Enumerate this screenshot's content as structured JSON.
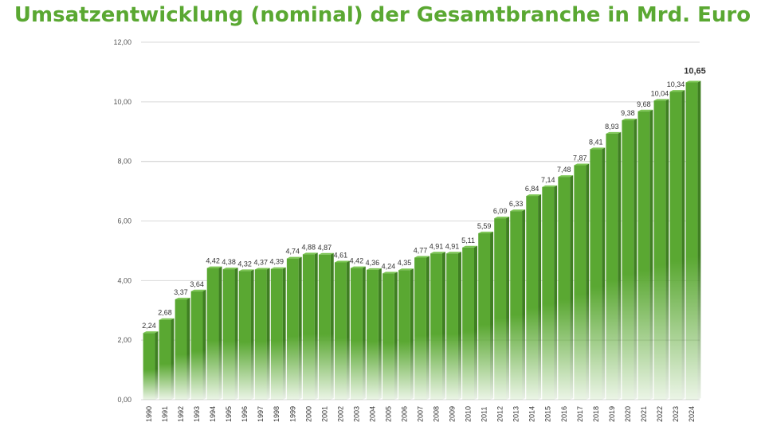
{
  "chart_data": {
    "type": "bar",
    "title": "Umsatzentwicklung (nominal) der Gesamtbranche in Mrd. Euro",
    "xlabel": "",
    "ylabel": "",
    "ylim": [
      0,
      12
    ],
    "yticks": [
      "0,00",
      "2,00",
      "4,00",
      "6,00",
      "8,00",
      "10,00",
      "12,00"
    ],
    "grid": true,
    "categories": [
      "1990",
      "1991",
      "1992",
      "1993",
      "1994",
      "1995",
      "1996",
      "1997",
      "1998",
      "1999",
      "2000",
      "2001",
      "2002",
      "2003",
      "2004",
      "2005",
      "2006",
      "2007",
      "2008",
      "2009",
      "2010",
      "2011",
      "2012",
      "2013",
      "2014",
      "2015",
      "2016",
      "2017",
      "2018",
      "2019",
      "2020",
      "2021",
      "2022",
      "2023",
      "2024"
    ],
    "values": [
      2.24,
      2.68,
      3.37,
      3.64,
      4.42,
      4.38,
      4.32,
      4.37,
      4.39,
      4.74,
      4.88,
      4.87,
      4.61,
      4.42,
      4.36,
      4.24,
      4.35,
      4.77,
      4.91,
      4.91,
      5.11,
      5.59,
      6.09,
      6.33,
      6.84,
      7.14,
      7.48,
      7.87,
      8.41,
      8.93,
      9.38,
      9.68,
      10.04,
      10.34,
      10.65
    ],
    "value_labels": [
      "2,24",
      "2,68",
      "3,37",
      "3,64",
      "4,42",
      "4,38",
      "4,32",
      "4,37",
      "4,39",
      "4,74",
      "4,88",
      "4,87",
      "4,61",
      "4,42",
      "4,36",
      "4,24",
      "4,35",
      "4,77",
      "4,91",
      "4,91",
      "5,11",
      "5,59",
      "6,09",
      "6,33",
      "6,84",
      "7,14",
      "7,48",
      "7,87",
      "8,41",
      "8,93",
      "9,38",
      "9,68",
      "10,04",
      "10,34",
      "10,65"
    ],
    "colors": {
      "bar": "#5aa832",
      "bar_dark": "#3f7f22",
      "title": "#5aa832",
      "grid": "#d9d9d9"
    }
  }
}
